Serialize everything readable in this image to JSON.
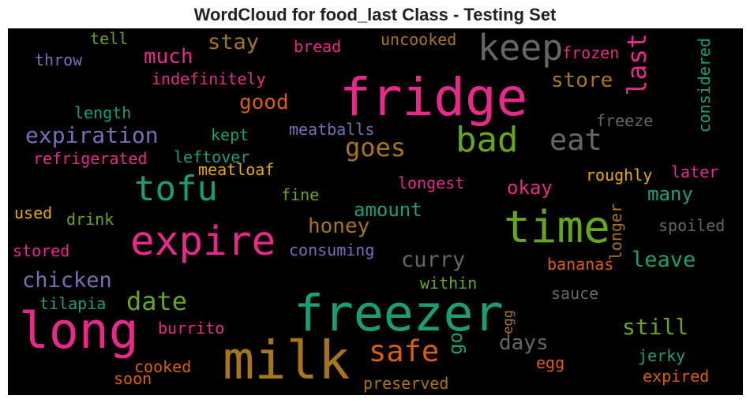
{
  "chart_data": {
    "type": "wordcloud",
    "title": "WordCloud for food_last Class - Testing Set",
    "background": "#000000",
    "palette": "Dark2",
    "words": [
      {
        "text": "fridge",
        "weight": 1.0,
        "color": "#e7298a"
      },
      {
        "text": "freezer",
        "weight": 0.98,
        "color": "#1b9e77"
      },
      {
        "text": "milk",
        "weight": 0.96,
        "color": "#a6761d"
      },
      {
        "text": "long",
        "weight": 0.94,
        "color": "#e7298a"
      },
      {
        "text": "time",
        "weight": 0.86,
        "color": "#66a61e"
      },
      {
        "text": "expire",
        "weight": 0.8,
        "color": "#e7298a"
      },
      {
        "text": "keep",
        "weight": 0.68,
        "color": "#666666"
      },
      {
        "text": "bad",
        "weight": 0.66,
        "color": "#66a61e"
      },
      {
        "text": "tofu",
        "weight": 0.66,
        "color": "#1b9e77"
      },
      {
        "text": "safe",
        "weight": 0.56,
        "color": "#d95f02"
      },
      {
        "text": "eat",
        "weight": 0.54,
        "color": "#666666"
      },
      {
        "text": "goes",
        "weight": 0.48,
        "color": "#a6761d"
      },
      {
        "text": "last",
        "weight": 0.48,
        "color": "#e7298a"
      },
      {
        "text": "date",
        "weight": 0.46,
        "color": "#66a61e"
      },
      {
        "text": "expiration",
        "weight": 0.42,
        "color": "#7570b3"
      },
      {
        "text": "chicken",
        "weight": 0.4,
        "color": "#7570b3"
      },
      {
        "text": "curry",
        "weight": 0.38,
        "color": "#666666"
      },
      {
        "text": "still",
        "weight": 0.38,
        "color": "#66a61e"
      },
      {
        "text": "leave",
        "weight": 0.38,
        "color": "#1b9e77"
      },
      {
        "text": "days",
        "weight": 0.36,
        "color": "#666666"
      },
      {
        "text": "honey",
        "weight": 0.36,
        "color": "#a6761d"
      },
      {
        "text": "stay",
        "weight": 0.36,
        "color": "#a6761d"
      },
      {
        "text": "much",
        "weight": 0.35,
        "color": "#e7298a"
      },
      {
        "text": "good",
        "weight": 0.35,
        "color": "#d95f02"
      },
      {
        "text": "store",
        "weight": 0.34,
        "color": "#a6761d"
      },
      {
        "text": "amount",
        "weight": 0.34,
        "color": "#1b9e77"
      },
      {
        "text": "okay",
        "weight": 0.34,
        "color": "#e7298a"
      },
      {
        "text": "many",
        "weight": 0.34,
        "color": "#1b9e77"
      },
      {
        "text": "go",
        "weight": 0.3,
        "color": "#1b9e77"
      },
      {
        "text": "considered",
        "weight": 0.28,
        "color": "#1b9e77"
      },
      {
        "text": "longer",
        "weight": 0.28,
        "color": "#a6761d"
      },
      {
        "text": "spoiled",
        "weight": 0.28,
        "color": "#666666"
      },
      {
        "text": "uncooked",
        "weight": 0.27,
        "color": "#a6761d"
      },
      {
        "text": "frozen",
        "weight": 0.26,
        "color": "#e7298a"
      },
      {
        "text": "freeze",
        "weight": 0.26,
        "color": "#666666"
      },
      {
        "text": "indefinitely",
        "weight": 0.26,
        "color": "#e7298a"
      },
      {
        "text": "bread",
        "weight": 0.26,
        "color": "#e7298a"
      },
      {
        "text": "tell",
        "weight": 0.26,
        "color": "#66a61e"
      },
      {
        "text": "throw",
        "weight": 0.26,
        "color": "#7570b3"
      },
      {
        "text": "length",
        "weight": 0.26,
        "color": "#1b9e77"
      },
      {
        "text": "kept",
        "weight": 0.26,
        "color": "#1b9e77"
      },
      {
        "text": "meatballs",
        "weight": 0.26,
        "color": "#7570b3"
      },
      {
        "text": "refrigerated",
        "weight": 0.26,
        "color": "#e7298a"
      },
      {
        "text": "leftover",
        "weight": 0.26,
        "color": "#1b9e77"
      },
      {
        "text": "meatloaf",
        "weight": 0.26,
        "color": "#e6ab02"
      },
      {
        "text": "roughly",
        "weight": 0.26,
        "color": "#e6ab02"
      },
      {
        "text": "later",
        "weight": 0.26,
        "color": "#e7298a"
      },
      {
        "text": "longest",
        "weight": 0.26,
        "color": "#e7298a"
      },
      {
        "text": "fine",
        "weight": 0.26,
        "color": "#66a61e"
      },
      {
        "text": "used",
        "weight": 0.26,
        "color": "#e6ab02"
      },
      {
        "text": "drink",
        "weight": 0.26,
        "color": "#66a61e"
      },
      {
        "text": "stored",
        "weight": 0.26,
        "color": "#e7298a"
      },
      {
        "text": "consuming",
        "weight": 0.26,
        "color": "#7570b3"
      },
      {
        "text": "bananas",
        "weight": 0.26,
        "color": "#d95f02"
      },
      {
        "text": "within",
        "weight": 0.26,
        "color": "#66a61e"
      },
      {
        "text": "tilapia",
        "weight": 0.26,
        "color": "#1b9e77"
      },
      {
        "text": "sauce",
        "weight": 0.26,
        "color": "#666666"
      },
      {
        "text": "burrito",
        "weight": 0.26,
        "color": "#e7298a"
      },
      {
        "text": "egg",
        "weight": 0.24,
        "color": "#a6761d"
      },
      {
        "text": "egg",
        "weight": 0.24,
        "color": "#d95f02"
      },
      {
        "text": "jerky",
        "weight": 0.26,
        "color": "#1b9e77"
      },
      {
        "text": "cooked",
        "weight": 0.26,
        "color": "#d95f02"
      },
      {
        "text": "soon",
        "weight": 0.26,
        "color": "#d95f02"
      },
      {
        "text": "preserved",
        "weight": 0.26,
        "color": "#a6761d"
      },
      {
        "text": "expired",
        "weight": 0.26,
        "color": "#d95f02"
      }
    ]
  }
}
